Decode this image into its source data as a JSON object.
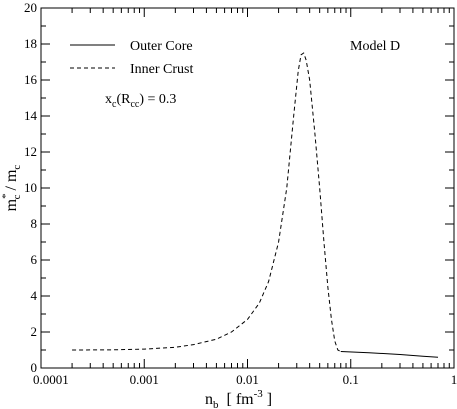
{
  "chart_data": {
    "type": "line",
    "x_scale": "log",
    "xlim": [
      0.0001,
      1
    ],
    "ylim": [
      0,
      20
    ],
    "x_ticks": [
      {
        "value": 0.0001,
        "label": "0.0001"
      },
      {
        "value": 0.001,
        "label": "0.001"
      },
      {
        "value": 0.01,
        "label": "0.01"
      },
      {
        "value": 0.1,
        "label": "0.1"
      },
      {
        "value": 1,
        "label": "1"
      }
    ],
    "y_ticks": [
      {
        "value": 0,
        "label": "0"
      },
      {
        "value": 2,
        "label": "2"
      },
      {
        "value": 4,
        "label": "4"
      },
      {
        "value": 6,
        "label": "6"
      },
      {
        "value": 8,
        "label": "8"
      },
      {
        "value": 10,
        "label": "10"
      },
      {
        "value": 12,
        "label": "12"
      },
      {
        "value": 14,
        "label": "14"
      },
      {
        "value": 16,
        "label": "16"
      },
      {
        "value": 18,
        "label": "18"
      },
      {
        "value": 20,
        "label": "20"
      }
    ],
    "xlabel": {
      "main": "n",
      "sub": "b",
      "rest": "  [ fm",
      "sup": "-3",
      "end": " ]"
    },
    "ylabel": {
      "m": "m",
      "sup": "*",
      "sub1": "c",
      "mid": " / m",
      "sub2": "c"
    },
    "grid": false,
    "legend_placement": "top-left",
    "annotation_model": "Model D",
    "annotation_x": {
      "pre": "x",
      "sub1": "c",
      "open": "(R",
      "sub2": "cc",
      "post": ") = 0.3"
    },
    "series": [
      {
        "name": "Outer Core",
        "style": "solid",
        "color": "#000000",
        "points": [
          [
            0.08,
            0.92
          ],
          [
            0.15,
            0.85
          ],
          [
            0.3,
            0.75
          ],
          [
            0.5,
            0.65
          ],
          [
            0.7,
            0.6
          ]
        ]
      },
      {
        "name": "Inner Crust",
        "style": "dashed",
        "color": "#000000",
        "points": [
          [
            0.0002,
            1.0
          ],
          [
            0.0005,
            1.01
          ],
          [
            0.001,
            1.05
          ],
          [
            0.002,
            1.15
          ],
          [
            0.003,
            1.3
          ],
          [
            0.005,
            1.6
          ],
          [
            0.007,
            2.0
          ],
          [
            0.01,
            2.7
          ],
          [
            0.013,
            3.6
          ],
          [
            0.016,
            4.8
          ],
          [
            0.02,
            7.0
          ],
          [
            0.024,
            10.0
          ],
          [
            0.028,
            14.0
          ],
          [
            0.031,
            16.5
          ],
          [
            0.033,
            17.4
          ],
          [
            0.035,
            17.5
          ],
          [
            0.037,
            17.1
          ],
          [
            0.04,
            16.0
          ],
          [
            0.045,
            13.0
          ],
          [
            0.05,
            10.0
          ],
          [
            0.055,
            7.0
          ],
          [
            0.06,
            4.5
          ],
          [
            0.065,
            2.7
          ],
          [
            0.07,
            1.5
          ],
          [
            0.075,
            1.0
          ],
          [
            0.08,
            0.92
          ]
        ]
      }
    ]
  }
}
